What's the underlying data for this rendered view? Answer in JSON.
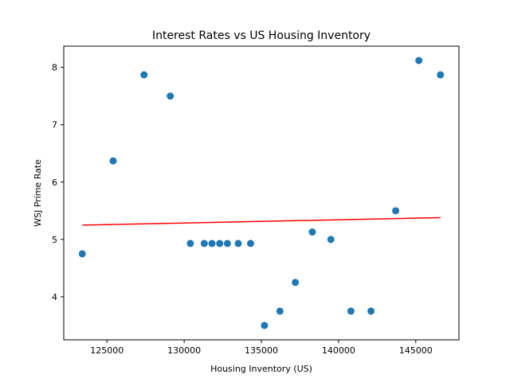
{
  "chart_data": {
    "type": "scatter",
    "title": "Interest Rates vs US Housing Inventory",
    "xlabel": "Housing Inventory (US)",
    "ylabel": "WSJ Prime Rate",
    "xlim": [
      122200,
      147800
    ],
    "ylim": [
      3.25,
      8.37
    ],
    "xticks": [
      125000,
      130000,
      135000,
      140000,
      145000
    ],
    "yticks": [
      4,
      5,
      6,
      7,
      8
    ],
    "grid": false,
    "legend": "none",
    "point_color": "#1f77b4",
    "trend_color": "#ff0000",
    "points": [
      {
        "x": 123400,
        "y": 4.75
      },
      {
        "x": 125400,
        "y": 6.37
      },
      {
        "x": 127400,
        "y": 7.87
      },
      {
        "x": 129100,
        "y": 7.5
      },
      {
        "x": 130400,
        "y": 4.93
      },
      {
        "x": 131300,
        "y": 4.93
      },
      {
        "x": 131800,
        "y": 4.93
      },
      {
        "x": 132300,
        "y": 4.93
      },
      {
        "x": 132800,
        "y": 4.93
      },
      {
        "x": 133500,
        "y": 4.93
      },
      {
        "x": 134300,
        "y": 4.93
      },
      {
        "x": 135200,
        "y": 3.5
      },
      {
        "x": 136200,
        "y": 3.75
      },
      {
        "x": 137200,
        "y": 4.25
      },
      {
        "x": 138300,
        "y": 5.13
      },
      {
        "x": 139500,
        "y": 5.0
      },
      {
        "x": 140800,
        "y": 3.75
      },
      {
        "x": 142100,
        "y": 3.75
      },
      {
        "x": 143700,
        "y": 5.5
      },
      {
        "x": 145200,
        "y": 8.12
      },
      {
        "x": 146600,
        "y": 7.87
      }
    ],
    "trend_line": {
      "x": [
        123400,
        146600
      ],
      "y": [
        5.25,
        5.38
      ]
    }
  }
}
